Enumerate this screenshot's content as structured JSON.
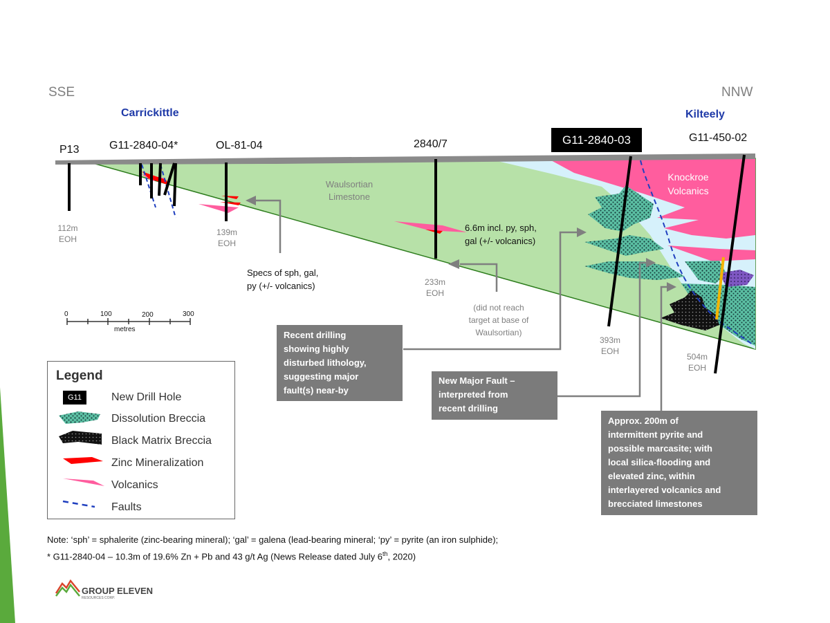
{
  "header": {
    "left_direction": "SSE",
    "right_direction": "NNW",
    "left_place": "Carrickittle",
    "right_place": "Kilteely"
  },
  "holes": {
    "p13": "P13",
    "g04": "G11-2840-04*",
    "ol": "OL-81-04",
    "h2840_7": "2840/7",
    "g03": "G11-2840-03",
    "g450": "G11-450-02"
  },
  "depths": {
    "p13": [
      "112m",
      "EOH"
    ],
    "ol": [
      "139m",
      "EOH"
    ],
    "h2840_7": [
      "233m",
      "EOH"
    ],
    "g03": [
      "393m",
      "EOH"
    ],
    "g450": [
      "504m",
      "EOH"
    ]
  },
  "units": {
    "waulsortian": [
      "Waulsortian",
      "Limestone"
    ],
    "knockroe": [
      "Knockroe",
      "Volcanics"
    ]
  },
  "annotations": {
    "specs": [
      "Specs of sph, gal,",
      "py (+/- volcanics)"
    ],
    "intercept": [
      "6.6m incl. py, sph,",
      "gal (+/- volcanics)"
    ],
    "did_not_reach": [
      "(did not reach",
      "target at base of",
      "Waulsortian)"
    ]
  },
  "boxes": {
    "recent": [
      "Recent drilling",
      "showing highly",
      "disturbed lithology,",
      "suggesting major",
      "fault(s) near-by"
    ],
    "fault": [
      "New Major Fault –",
      "interpreted from",
      "recent drilling"
    ],
    "pyrite": [
      "Approx. 200m of",
      "intermittent pyrite and",
      "possible marcasite; with",
      "local silica-flooding and",
      "elevated zinc, within",
      "interlayered volcanics and",
      "brecciated limestones"
    ]
  },
  "scale": {
    "ticks": [
      "0",
      "100",
      "200",
      "300"
    ],
    "unit": "metres"
  },
  "legend": {
    "title": "Legend",
    "badge": "G11",
    "items": [
      "New Drill Hole",
      "Dissolution Breccia",
      "Black Matrix Breccia",
      "Zinc Mineralization",
      "Volcanics",
      "Faults"
    ]
  },
  "footnote": {
    "line1": "Note: ‘sph’ = sphalerite (zinc-bearing mineral); ‘gal’ = galena (lead-bearing mineral; ‘py’ = pyrite (an iron sulphide);",
    "line2_pre": "* G11-2840-04 – 10.3m of 19.6% Zn + Pb and 43 g/t Ag (News Release dated July 6",
    "line2_sup": "th",
    "line2_post": ", 2020)"
  },
  "logo": {
    "name": "GROUP ELEVEN",
    "sub": "RESOURCES CORP."
  },
  "colors": {
    "limestone": "#b7e1a8",
    "volcanics": "#ff5d9e",
    "zinc": "#ff0000",
    "fault": "#1f3fbf",
    "light_blue": "#d6f1fb",
    "box": "#7b7b7b",
    "accent_green": "#5aaa3c"
  }
}
